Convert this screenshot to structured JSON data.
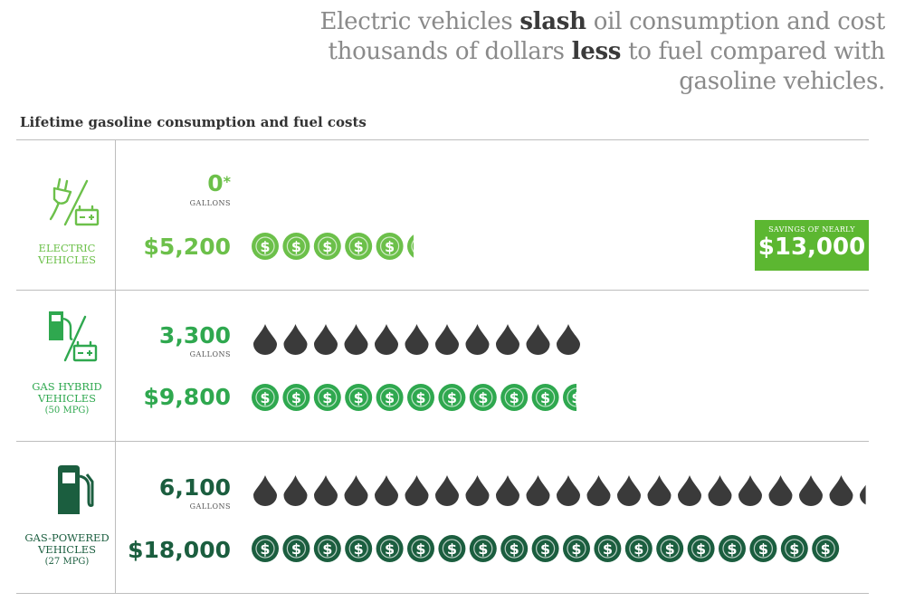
{
  "headline": {
    "part1": "Electric vehicles ",
    "bold1": "slash",
    "part2": " oil consumption and cost thousands of dollars ",
    "bold2": "less",
    "part3": " to fuel compared with gasoline vehicles."
  },
  "colors": {
    "electric": "#6cc04a",
    "hybrid": "#2fa84f",
    "gas": "#1b5e3f",
    "drop": "#3a3a3a",
    "savings_bg": "#5cb731"
  },
  "chart_data": {
    "type": "pictograph",
    "title": "Lifetime gasoline consumption and fuel costs",
    "categories": [
      {
        "name": "ELECTRIC VEHICLES",
        "mpg": "",
        "icon": "plug-battery-icon",
        "gallons": 0,
        "gallons_label": "0",
        "gallons_note": "*",
        "cost": 5200,
        "cost_label": "$5,200",
        "drop_units": 0,
        "coin_units": 5.25
      },
      {
        "name": "GAS HYBRID VEHICLES",
        "mpg": "(50 MPG)",
        "icon": "pump-battery-icon",
        "gallons": 3300,
        "gallons_label": "3,300",
        "gallons_note": "",
        "cost": 9800,
        "cost_label": "$9,800",
        "drop_units": 11,
        "coin_units": 10.5
      },
      {
        "name": "GAS-POWERED VEHICLES",
        "mpg": "(27 MPG)",
        "icon": "gas-pump-icon",
        "gallons": 6100,
        "gallons_label": "6,100",
        "gallons_note": "",
        "cost": 18000,
        "cost_label": "$18,000",
        "drop_units": 20.3,
        "coin_units": 19
      }
    ],
    "gallons_unit": "GALLONS",
    "savings": {
      "label": "SAVINGS OF NEARLY",
      "value": "$13,000"
    }
  }
}
